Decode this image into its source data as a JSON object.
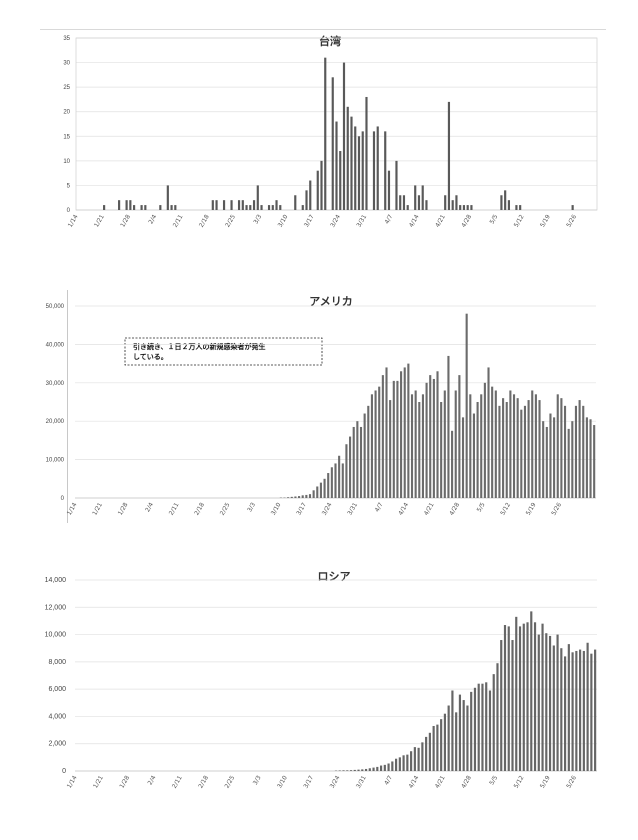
{
  "chart_data": [
    {
      "type": "bar",
      "title": "台湾",
      "x_labels": [
        "1/14",
        "1/21",
        "1/28",
        "2/4",
        "2/11",
        "2/18",
        "2/25",
        "3/3",
        "3/10",
        "3/17",
        "3/24",
        "3/31",
        "4/7",
        "4/14",
        "4/21",
        "4/28",
        "5/5",
        "5/12",
        "5/19",
        "5/26"
      ],
      "y_ticks": [
        "0",
        "5",
        "10",
        "15",
        "20",
        "25",
        "30",
        "35"
      ],
      "ylim": [
        0,
        35
      ],
      "start_date": "1/14",
      "values": [
        0,
        0,
        0,
        0,
        0,
        0,
        0,
        1,
        0,
        0,
        0,
        2,
        0,
        2,
        2,
        1,
        0,
        1,
        1,
        0,
        0,
        0,
        1,
        0,
        5,
        1,
        1,
        0,
        0,
        0,
        0,
        0,
        0,
        0,
        0,
        0,
        2,
        2,
        0,
        2,
        0,
        2,
        0,
        2,
        2,
        1,
        1,
        2,
        5,
        1,
        0,
        1,
        1,
        2,
        1,
        0,
        0,
        0,
        3,
        0,
        1,
        4,
        6,
        0,
        8,
        10,
        31,
        0,
        27,
        18,
        12,
        30,
        21,
        19,
        17,
        15,
        16,
        23,
        0,
        16,
        17,
        0,
        16,
        8,
        0,
        10,
        3,
        3,
        1,
        0,
        5,
        3,
        5,
        2,
        0,
        0,
        0,
        0,
        3,
        22,
        2,
        3,
        1,
        1,
        1,
        1,
        0,
        0,
        0,
        0,
        0,
        0,
        0,
        3,
        4,
        2,
        0,
        1,
        1,
        0,
        0,
        0,
        0,
        0,
        0,
        0,
        0,
        0,
        0,
        0,
        0,
        0,
        1,
        0,
        0,
        0,
        0,
        0,
        0
      ],
      "grid": true
    },
    {
      "type": "bar",
      "title": "アメリカ",
      "x_labels": [
        "1/14",
        "1/21",
        "1/28",
        "2/4",
        "2/11",
        "2/18",
        "2/25",
        "3/3",
        "3/10",
        "3/17",
        "3/24",
        "3/31",
        "4/7",
        "4/14",
        "4/21",
        "4/28",
        "5/5",
        "5/12",
        "5/19",
        "5/26"
      ],
      "y_ticks": [
        "0",
        "10,000",
        "20,000",
        "30,000",
        "40,000",
        "50,000"
      ],
      "ylim": [
        0,
        50000
      ],
      "start_date": "1/14",
      "annotation": "引き続き、１日２万人の新規感染者が発生している。",
      "values": [
        0,
        0,
        0,
        0,
        0,
        0,
        0,
        0,
        0,
        0,
        0,
        0,
        0,
        0,
        0,
        0,
        0,
        0,
        0,
        0,
        0,
        0,
        0,
        0,
        0,
        0,
        0,
        0,
        0,
        0,
        0,
        0,
        0,
        0,
        0,
        0,
        0,
        0,
        0,
        0,
        0,
        0,
        0,
        0,
        0,
        0,
        0,
        0,
        0,
        0,
        0,
        0,
        0,
        0,
        0,
        0,
        100,
        100,
        200,
        300,
        400,
        500,
        700,
        800,
        1000,
        2000,
        3000,
        4000,
        5000,
        6500,
        8000,
        9000,
        11000,
        9000,
        14000,
        16000,
        18500,
        20000,
        18500,
        22000,
        24000,
        27000,
        28000,
        29000,
        32000,
        34000,
        25500,
        30500,
        30500,
        33000,
        34000,
        35000,
        27000,
        28000,
        25000,
        27000,
        30000,
        32000,
        31000,
        33000,
        25000,
        28000,
        37000,
        17500,
        28000,
        32000,
        21000,
        48000,
        27000,
        22000,
        25000,
        27000,
        30000,
        34000,
        29000,
        28000,
        24000,
        26000,
        25000,
        28000,
        27000,
        26000,
        23000,
        24000,
        25500,
        28000,
        27000,
        25500,
        20000,
        18500,
        22000,
        21000,
        27000,
        26000,
        24000,
        18000,
        20000,
        24000,
        25500,
        24000,
        21000,
        20500,
        19000
      ],
      "grid": true
    },
    {
      "type": "bar",
      "title": "ロシア",
      "x_labels": [
        "1/14",
        "1/21",
        "1/28",
        "2/4",
        "2/11",
        "2/18",
        "2/25",
        "3/3",
        "3/10",
        "3/17",
        "3/24",
        "3/31",
        "4/7",
        "4/14",
        "4/21",
        "4/28",
        "5/5",
        "5/12",
        "5/19",
        "5/26"
      ],
      "y_ticks": [
        "0",
        "2,000",
        "4,000",
        "6,000",
        "8,000",
        "10,000",
        "12,000",
        "14,000"
      ],
      "ylim": [
        0,
        14000
      ],
      "start_date": "1/14",
      "values": [
        0,
        0,
        0,
        0,
        0,
        0,
        0,
        0,
        0,
        0,
        0,
        0,
        0,
        0,
        0,
        0,
        0,
        0,
        0,
        0,
        0,
        0,
        0,
        0,
        0,
        0,
        0,
        0,
        0,
        0,
        0,
        0,
        0,
        0,
        0,
        0,
        0,
        0,
        0,
        0,
        0,
        0,
        0,
        0,
        0,
        0,
        0,
        0,
        0,
        0,
        0,
        0,
        0,
        0,
        0,
        0,
        0,
        0,
        0,
        0,
        0,
        0,
        0,
        0,
        0,
        0,
        0,
        0,
        0,
        30,
        40,
        50,
        50,
        60,
        80,
        100,
        120,
        150,
        200,
        250,
        300,
        400,
        450,
        550,
        700,
        900,
        1000,
        1150,
        1200,
        1450,
        1750,
        1700,
        2100,
        2500,
        2800,
        3300,
        3400,
        3800,
        4200,
        4800,
        5900,
        4300,
        5600,
        5200,
        4800,
        5800,
        6100,
        6400,
        6400,
        6500,
        5900,
        7100,
        7900,
        9600,
        10700,
        10600,
        9600,
        11300,
        10600,
        10800,
        10900,
        11700,
        10900,
        10000,
        10800,
        10100,
        9900,
        9200,
        10000,
        9000,
        8400,
        9300,
        8700,
        8800,
        8900,
        8800,
        9400,
        8600,
        8900
      ],
      "grid": true
    }
  ]
}
